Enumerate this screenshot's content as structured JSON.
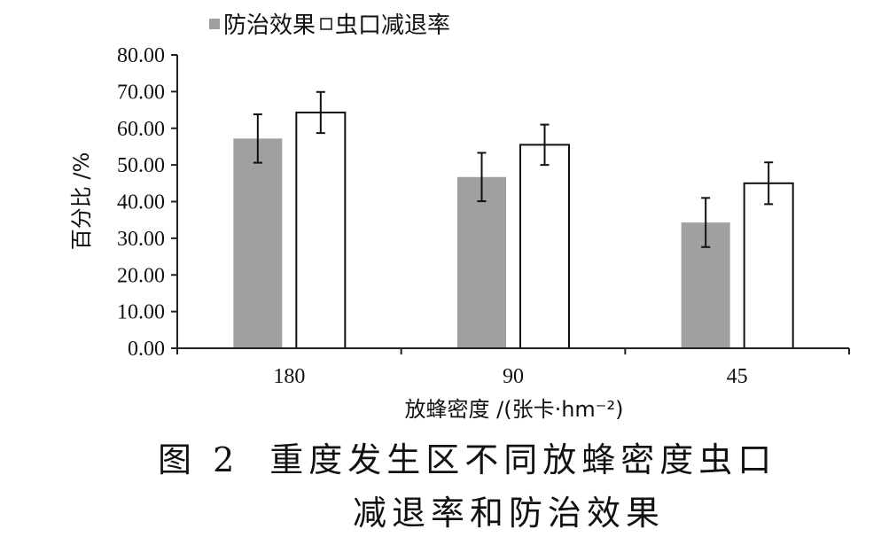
{
  "chart_data": {
    "type": "bar",
    "categories": [
      "180",
      "90",
      "45"
    ],
    "series": [
      {
        "name": "防治效果",
        "values": [
          57.2,
          46.7,
          34.3
        ],
        "errors": [
          6.6,
          6.6,
          6.7
        ],
        "fill": "#a0a0a0"
      },
      {
        "name": "虫口减退率",
        "values": [
          64.3,
          55.5,
          45.0
        ],
        "errors": [
          5.6,
          5.5,
          5.7
        ],
        "fill": "#ffffff"
      }
    ],
    "xlabel": "放蜂密度 /(张卡·hm⁻²)",
    "ylabel": "百分比 /%",
    "ylim": [
      0,
      80
    ],
    "yticks": [
      "0.00",
      "10.00",
      "20.00",
      "30.00",
      "40.00",
      "50.00",
      "60.00",
      "70.00",
      "80.00"
    ],
    "legend_position": "top-left",
    "grid": false
  },
  "caption": {
    "figure_number": "图 2",
    "line1": "重度发生区不同放蜂密度虫口",
    "line2": "减退率和防治效果"
  }
}
